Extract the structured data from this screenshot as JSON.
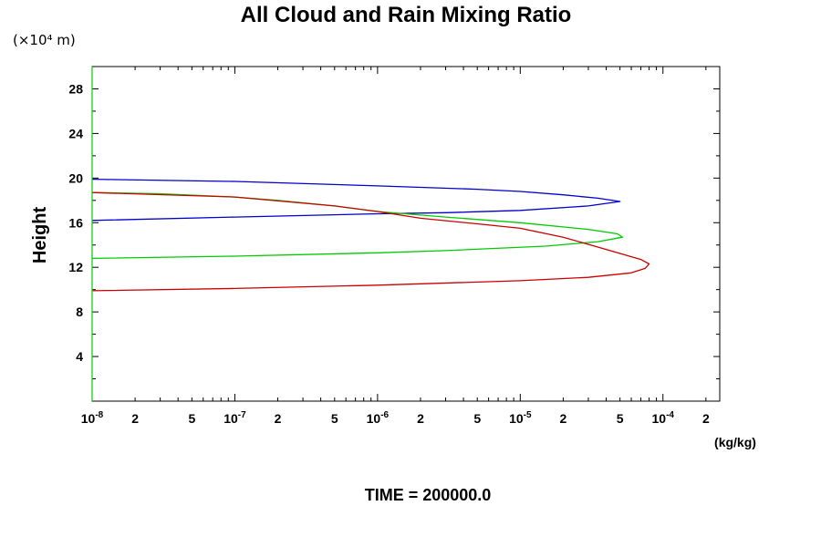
{
  "chart_data": {
    "type": "line",
    "title": "All Cloud and Rain Mixing Ratio",
    "y_unit_label": "(×10⁴ m)",
    "xlabel": "(kg/kg)",
    "ylabel": "Height",
    "x_scale": "log",
    "xlim": [
      1e-08,
      0.00025
    ],
    "ylim": [
      0,
      30
    ],
    "y_ticks": [
      "4",
      "8",
      "12",
      "16",
      "20",
      "24",
      "28"
    ],
    "x_ticks": [
      {
        "value": 1e-08,
        "base": "10",
        "exp": "-8"
      },
      {
        "value": 2e-08,
        "base": "2",
        "exp": ""
      },
      {
        "value": 5e-08,
        "base": "5",
        "exp": ""
      },
      {
        "value": 1e-07,
        "base": "10",
        "exp": "-7"
      },
      {
        "value": 2e-07,
        "base": "2",
        "exp": ""
      },
      {
        "value": 5e-07,
        "base": "5",
        "exp": ""
      },
      {
        "value": 1e-06,
        "base": "10",
        "exp": "-6"
      },
      {
        "value": 2e-06,
        "base": "2",
        "exp": ""
      },
      {
        "value": 5e-06,
        "base": "5",
        "exp": ""
      },
      {
        "value": 1e-05,
        "base": "10",
        "exp": "-5"
      },
      {
        "value": 2e-05,
        "base": "2",
        "exp": ""
      },
      {
        "value": 5e-05,
        "base": "5",
        "exp": ""
      },
      {
        "value": 0.0001,
        "base": "10",
        "exp": "-4"
      },
      {
        "value": 0.0002,
        "base": "2",
        "exp": ""
      }
    ],
    "grid": false,
    "legend": "none",
    "series": [
      {
        "color": "#0000cc",
        "points": [
          [
            1e-08,
            19.9
          ],
          [
            1e-07,
            19.7
          ],
          [
            1e-06,
            19.3
          ],
          [
            5e-06,
            19.0
          ],
          [
            1e-05,
            18.8
          ],
          [
            2e-05,
            18.5
          ],
          [
            3.5e-05,
            18.2
          ],
          [
            5e-05,
            17.9
          ],
          [
            3e-05,
            17.5
          ],
          [
            1e-05,
            17.1
          ],
          [
            3e-06,
            16.9
          ],
          [
            1e-06,
            16.8
          ],
          [
            1e-07,
            16.5
          ],
          [
            1e-08,
            16.2
          ]
        ]
      },
      {
        "color": "#00cc00",
        "points": [
          [
            1e-08,
            18.7
          ],
          [
            3e-08,
            18.6
          ],
          [
            1e-07,
            18.3
          ],
          [
            2e-07,
            18.0
          ],
          [
            5e-07,
            17.5
          ],
          [
            1e-06,
            17.0
          ],
          [
            3e-06,
            16.5
          ],
          [
            1e-05,
            16.0
          ],
          [
            3e-05,
            15.4
          ],
          [
            4.8e-05,
            15.0
          ],
          [
            5.2e-05,
            14.7
          ],
          [
            3.5e-05,
            14.3
          ],
          [
            1.5e-05,
            13.9
          ],
          [
            3e-06,
            13.5
          ],
          [
            1e-06,
            13.3
          ],
          [
            1e-07,
            13.0
          ],
          [
            1e-08,
            12.8
          ]
        ]
      },
      {
        "color": "#cc0000",
        "points": [
          [
            1e-08,
            18.7
          ],
          [
            1e-07,
            18.3
          ],
          [
            5e-07,
            17.5
          ],
          [
            1e-06,
            17.0
          ],
          [
            2e-06,
            16.4
          ],
          [
            5e-06,
            15.9
          ],
          [
            1e-05,
            15.5
          ],
          [
            2e-05,
            14.7
          ],
          [
            4e-05,
            13.6
          ],
          [
            7e-05,
            12.7
          ],
          [
            8e-05,
            12.3
          ],
          [
            7.5e-05,
            11.9
          ],
          [
            6e-05,
            11.5
          ],
          [
            3e-05,
            11.1
          ],
          [
            1e-05,
            10.8
          ],
          [
            1e-06,
            10.4
          ],
          [
            1e-07,
            10.1
          ],
          [
            1e-08,
            9.9
          ]
        ]
      }
    ]
  },
  "footer": {
    "time_label": "TIME = 200000.0"
  }
}
